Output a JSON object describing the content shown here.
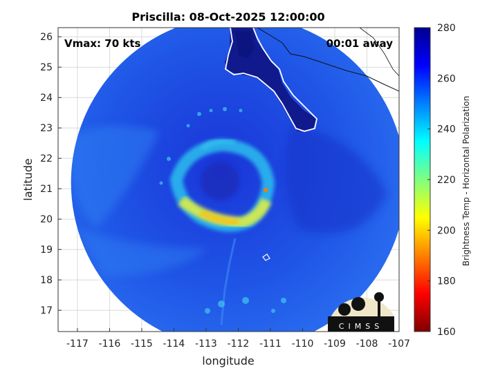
{
  "chart_data": {
    "type": "heatmap",
    "title": "Priscilla: 08-Oct-2025 12:00:00",
    "annotations": {
      "vmax": "Vmax: 70 kts",
      "offset": "00:01 away"
    },
    "xlabel": "longitude",
    "ylabel": "latitude",
    "xlim": [
      -117.6,
      -107
    ],
    "ylim": [
      16.3,
      26.3
    ],
    "xticks": [
      -117,
      -116,
      -115,
      -114,
      -113,
      -112,
      -111,
      -110,
      -109,
      -108,
      -107
    ],
    "yticks": [
      17,
      18,
      19,
      20,
      21,
      22,
      23,
      24,
      25,
      26
    ],
    "grid": true,
    "storm_center": {
      "lon": -112.4,
      "lat": 21.0
    },
    "swath_center": {
      "lon": -112.0,
      "lat": 21.2
    },
    "swath_radius_deg": 5.2,
    "colorbar": {
      "label": "Brightness Temp - Horizontal Polarization",
      "ticks": [
        160,
        180,
        200,
        220,
        240,
        260,
        280
      ],
      "range": [
        160,
        280
      ],
      "colors": [
        "#7f0000",
        "#ff0000",
        "#ff8000",
        "#ffff00",
        "#80ff80",
        "#00ffff",
        "#0080ff",
        "#0000ff",
        "#00008f"
      ]
    },
    "logo_text": "CIMSS"
  }
}
